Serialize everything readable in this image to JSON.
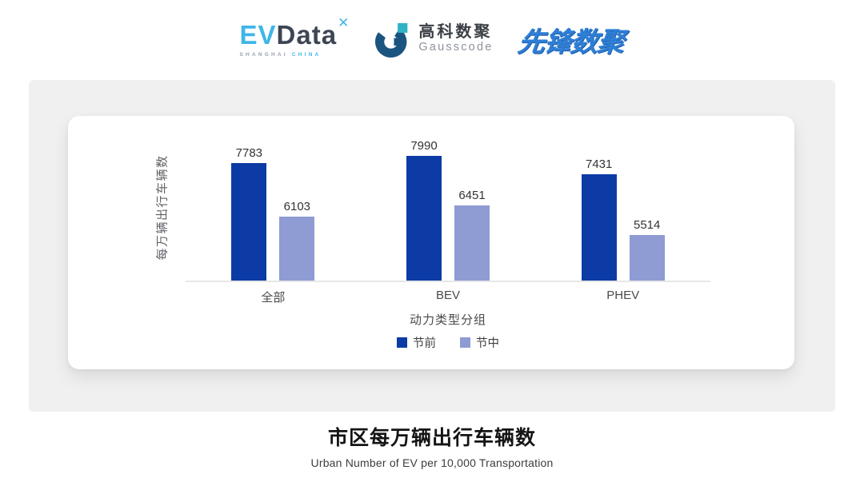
{
  "header": {
    "evdata": {
      "name_primary": "EV",
      "name_secondary": "Data",
      "mark": "✕",
      "tagline_left": "SHANGHAI",
      "tagline_right": "CHINA"
    },
    "gausscode": {
      "name_cn": "高科数聚",
      "name_en": "Gausscode"
    },
    "pioneer": {
      "name": "先锋数聚"
    }
  },
  "colors": {
    "series_pre": "#0d3ba5",
    "series_mid": "#8e9cd3",
    "evdata_blue": "#3fb6e8",
    "evdata_dark": "#3d4654",
    "gausscode_navy": "#1b547f",
    "gausscode_teal": "#2fb3c4",
    "pioneer_blue": "#2f7ed5",
    "panel_gray": "#f0f0f1"
  },
  "chart_data": {
    "type": "bar",
    "categories": [
      "全部",
      "BEV",
      "PHEV"
    ],
    "series": [
      {
        "name": "节前",
        "color": "#0d3ba5",
        "values": [
          7783,
          7990,
          7431
        ]
      },
      {
        "name": "节中",
        "color": "#8e9cd3",
        "values": [
          6103,
          6451,
          5514
        ]
      }
    ],
    "ylabel": "每万辆出行车辆数",
    "xlabel": "动力类型分组",
    "ylim": [
      4100,
      8800
    ],
    "grid": false,
    "legend_position": "bottom",
    "value_labels": true
  },
  "footer": {
    "title": "市区每万辆出行车辆数",
    "subtitle": "Urban Number of EV per 10,000 Transportation"
  }
}
